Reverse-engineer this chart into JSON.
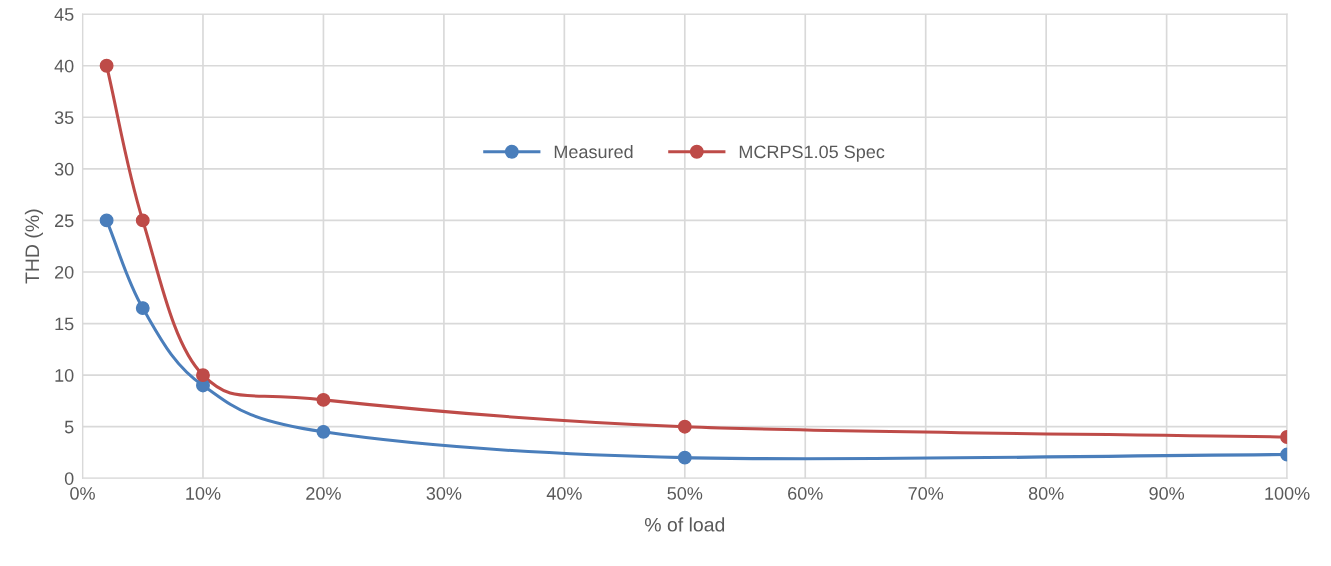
{
  "chart_data": {
    "type": "line",
    "xlabel": "% of load",
    "ylabel": "THD (%)",
    "x": [
      2,
      5,
      10,
      20,
      50,
      100
    ],
    "series": [
      {
        "name": "Measured",
        "color": "#4a7ebb",
        "values": [
          25,
          16.5,
          9,
          4.5,
          2,
          2.3
        ]
      },
      {
        "name": "MCRPS1.05 Spec",
        "color": "#be4b48",
        "values": [
          40,
          25,
          10,
          7.6,
          5,
          4
        ]
      }
    ],
    "xlim": [
      0,
      100
    ],
    "xticks": [
      {
        "value": 0,
        "label": "0%"
      },
      {
        "value": 10,
        "label": "10%"
      },
      {
        "value": 20,
        "label": "20%"
      },
      {
        "value": 30,
        "label": "30%"
      },
      {
        "value": 40,
        "label": "40%"
      },
      {
        "value": 50,
        "label": "50%"
      },
      {
        "value": 60,
        "label": "60%"
      },
      {
        "value": 70,
        "label": "70%"
      },
      {
        "value": 80,
        "label": "80%"
      },
      {
        "value": 90,
        "label": "90%"
      },
      {
        "value": 100,
        "label": "100%"
      }
    ],
    "ylim": [
      0,
      45
    ],
    "yticks": [
      0,
      5,
      10,
      15,
      20,
      25,
      30,
      35,
      40,
      45
    ],
    "grid": true,
    "legend": "center",
    "marker": "circle",
    "line_style": "solid"
  }
}
